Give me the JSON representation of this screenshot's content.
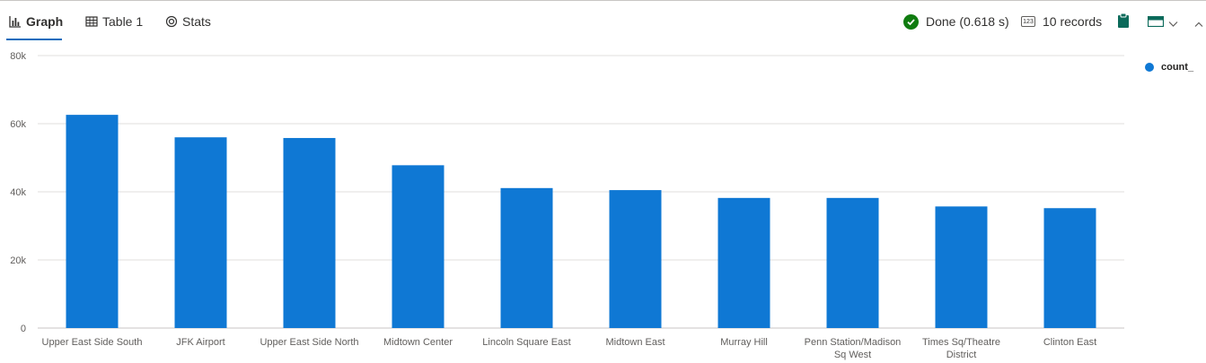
{
  "tabs": [
    {
      "label": "Graph",
      "icon": "bar-chart-icon",
      "active": true
    },
    {
      "label": "Table 1",
      "icon": "table-icon",
      "active": false
    },
    {
      "label": "Stats",
      "icon": "stats-icon",
      "active": false
    }
  ],
  "status": {
    "done": "Done (0.618 s)",
    "records_icon_text": "123",
    "records": "10 records"
  },
  "colors": {
    "bar": "#0f78d4",
    "grid": "#e1dfdd",
    "axis": "#c8c6c4",
    "accent": "#0f6cbd",
    "done": "#107c10"
  },
  "chart_data": {
    "type": "bar",
    "categories": [
      [
        "Upper East Side South"
      ],
      [
        "JFK Airport"
      ],
      [
        "Upper East Side North"
      ],
      [
        "Midtown Center"
      ],
      [
        "Lincoln Square East"
      ],
      [
        "Midtown East"
      ],
      [
        "Murray Hill"
      ],
      [
        "Penn Station/Madison",
        "Sq West"
      ],
      [
        "Times Sq/Theatre",
        "District"
      ],
      [
        "Clinton East"
      ]
    ],
    "series": [
      {
        "name": "count_",
        "values": [
          62600,
          56000,
          55800,
          47800,
          41100,
          40500,
          38200,
          38200,
          35700,
          35200
        ]
      }
    ],
    "ylim": [
      0,
      80000
    ],
    "yticks": [
      0,
      20000,
      40000,
      60000,
      80000
    ],
    "ytick_labels": [
      "0",
      "20k",
      "40k",
      "60k",
      "80k"
    ],
    "legend_position": "top-right",
    "grid": true
  }
}
